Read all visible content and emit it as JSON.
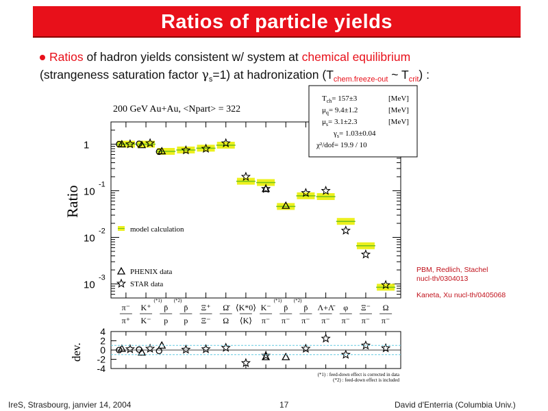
{
  "header": {
    "title": "Ratios of particle yields"
  },
  "bullet": {
    "w1": "Ratios",
    "w2": " of hadron yields consistent w/ system at ",
    "w3": "chemical equilibrium",
    "l2a": "(strangeness saturation factor ",
    "gamma": "γ",
    "gsub": "s",
    "l2b": "=1) at hadronization (T",
    "tsub": "chem.freeze-out",
    "l2c": " ~ T",
    "tsub2": "crit",
    "l2d": ") :"
  },
  "chart_data": {
    "type": "scatter",
    "title": "200 GeV Au+Au, <Npart> = 322",
    "ylabel": "Ratio",
    "dev_label": "dev.",
    "yscale": "log",
    "ylim": [
      0.0005,
      3
    ],
    "dev_ylim": [
      -4,
      4
    ],
    "ytick_bases": [
      "1",
      "10",
      "10",
      "10"
    ],
    "ytick_exps": [
      "",
      "-1",
      "-2",
      "-3"
    ],
    "dev_ticks": [
      "4",
      "2",
      "0",
      "-2",
      "-4"
    ],
    "categories": [
      {
        "num": "π⁻",
        "den": "π⁺",
        "note": ""
      },
      {
        "num": "K⁺",
        "den": "K⁻",
        "note": ""
      },
      {
        "num": "p̄",
        "den": "p",
        "note": "(*1)"
      },
      {
        "num": "p̄",
        "den": "p",
        "note": "(*2)"
      },
      {
        "num": "Ξ⁺",
        "den": "Ξ⁻",
        "note": ""
      },
      {
        "num": "Ω̄",
        "den": "Ω",
        "note": ""
      },
      {
        "num": "⟨K*0⟩",
        "den": "⟨K⟩",
        "note": ""
      },
      {
        "num": "K⁻",
        "den": "π⁻",
        "note": ""
      },
      {
        "num": "p̄",
        "den": "π⁻",
        "note": "(*1)"
      },
      {
        "num": "p̄",
        "den": "π⁻",
        "note": "(*2)"
      },
      {
        "num": "Λ+Λ̄",
        "den": "π⁻",
        "note": ""
      },
      {
        "num": "φ",
        "den": "π⁻",
        "note": ""
      },
      {
        "num": "Ξ⁻",
        "den": "π⁻",
        "note": ""
      },
      {
        "num": "Ω",
        "den": "π⁻",
        "note": ""
      }
    ],
    "model": [
      1.0,
      1.0,
      0.7,
      0.75,
      0.82,
      0.95,
      0.16,
      0.15,
      0.046,
      0.078,
      0.075,
      0.022,
      0.0066,
      0.00085
    ],
    "series": [
      {
        "name": "PHENIX data",
        "marker": "triangle",
        "values": [
          1.0,
          0.96,
          0.71,
          null,
          null,
          null,
          null,
          0.11,
          0.048,
          null,
          null,
          null,
          null,
          null
        ],
        "dev": [
          0.3,
          -0.5,
          1.0,
          null,
          null,
          null,
          null,
          -1.5,
          -1.5,
          null,
          null,
          null,
          null,
          null
        ]
      },
      {
        "name": "STAR data",
        "marker": "star",
        "values": [
          1.0,
          1.05,
          null,
          0.74,
          0.8,
          1.05,
          0.2,
          0.11,
          null,
          0.09,
          0.1,
          0.014,
          0.0043,
          0.00095
        ],
        "dev": [
          0.2,
          0.3,
          null,
          0.1,
          0.2,
          0.5,
          -2.8,
          -1.2,
          null,
          0.3,
          2.5,
          -1.0,
          1.0,
          0.4
        ]
      },
      {
        "name": "",
        "marker": "circle",
        "values": [
          1.0,
          1.02,
          0.69,
          null,
          null,
          null,
          null,
          null,
          null,
          null,
          null,
          null,
          null,
          null
        ],
        "dev": [
          0.0,
          0.1,
          -0.2,
          null,
          null,
          null,
          null,
          null,
          null,
          null,
          null,
          null,
          null,
          null
        ]
      }
    ],
    "legend": [
      "model calculation",
      "PHENIX data",
      "STAR data"
    ],
    "fit_box": [
      {
        "sym": "T",
        "sub": "ch",
        "eq": "=  157±3",
        "unit": "[MeV]"
      },
      {
        "sym": "μ",
        "sub": "q",
        "eq": "=   9.4±1.2",
        "unit": "[MeV]"
      },
      {
        "sym": "μ",
        "sub": "s",
        "eq": "=   3.1±2.3",
        "unit": "[MeV]"
      },
      {
        "sym": "γ",
        "sub": "s",
        "eq": "= 1.03±0.04",
        "unit": ""
      },
      {
        "sym": "χ",
        "sub": "",
        "eq": "²/dof= 19.9 / 10",
        "unit": ""
      }
    ],
    "footnotes": [
      "(*1) : feed-down effect is corrected in data",
      "(*2) : feed-down effect is included"
    ],
    "colors": {
      "model_band": "#ecf01e",
      "model_line": "#6fbf1a",
      "dev_line": "#60c8e0"
    }
  },
  "references": {
    "line1": "PBM, Redlich, Stachel",
    "line2": "nucl-th/0304013",
    "line3": "Kaneta, Xu nucl-th/0405068"
  },
  "footer": {
    "left": "IreS, Strasbourg, janvier 14, 2004",
    "page": "17",
    "right": "David d'Enterria (Columbia Univ.)"
  }
}
